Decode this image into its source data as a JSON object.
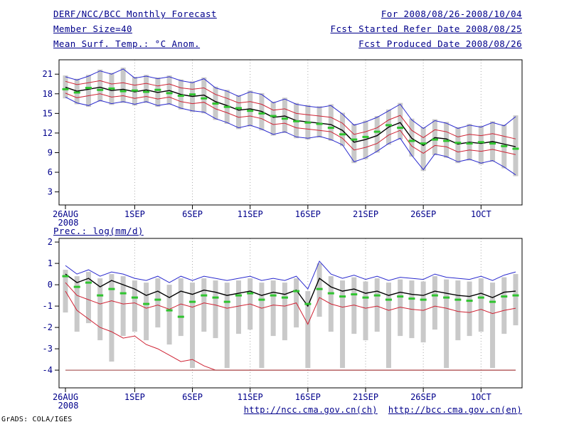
{
  "header": {
    "title": "DERF/NCC/BCC Monthly Forecast",
    "for_range": "For 2008/08/26-2008/10/04",
    "member_size": "Member Size=40",
    "refer_date": "Fcst Started Refer Date 2008/08/25",
    "produced_date": "Fcst Produced Date 2008/08/26"
  },
  "footer": {
    "url_ch": "http://ncc.cma.gov.cn(ch)",
    "url_en": "http://bcc.cma.gov.cn(en)",
    "credit": "GrADS: COLA/IGES"
  },
  "colors": {
    "ink": "#00008b",
    "frame": "#000000",
    "grid": "#aaaaaa",
    "bar": "#c9c9c9",
    "blue": "#2a2ace",
    "red": "#cf2233",
    "black": "#000000",
    "green": "#2fc42f",
    "floor_red": "#9a3b3b"
  },
  "chart_data": [
    {
      "type": "line",
      "title": "Mean Surf. Temp.: °C Anom.",
      "ylabel": "",
      "n_days": 40,
      "ylim": [
        1.0,
        23.2
      ],
      "yticks": [
        3,
        6,
        9,
        12,
        15,
        18,
        21
      ],
      "x_ticks": [
        {
          "day": 0,
          "label": "26AUG",
          "sub": "2008"
        },
        {
          "day": 6,
          "label": "1SEP"
        },
        {
          "day": 11,
          "label": "6SEP"
        },
        {
          "day": 16,
          "label": "11SEP"
        },
        {
          "day": 21,
          "label": "16SEP"
        },
        {
          "day": 26,
          "label": "21SEP"
        },
        {
          "day": 31,
          "label": "26SEP"
        },
        {
          "day": 36,
          "label": "1OCT"
        }
      ],
      "bars": {
        "name": "ensemble spread",
        "color": "#c9c9c9",
        "top": [
          20.8,
          20.3,
          20.9,
          21.7,
          21.2,
          22.0,
          20.6,
          20.9,
          20.5,
          20.8,
          20.2,
          19.9,
          20.5,
          19.1,
          18.6,
          17.8,
          18.5,
          18.1,
          16.8,
          17.4,
          16.6,
          16.3,
          16.1,
          16.4,
          15.1,
          13.4,
          13.9,
          14.6,
          15.6,
          16.6,
          14.2,
          12.9,
          14.1,
          13.7,
          12.9,
          13.4,
          13.1,
          13.8,
          13.3,
          14.7
        ],
        "bottom": [
          17.3,
          16.4,
          16.0,
          16.8,
          16.3,
          16.6,
          16.2,
          16.6,
          16.0,
          16.3,
          15.6,
          15.2,
          15.0,
          14.0,
          13.4,
          12.6,
          13.0,
          12.4,
          11.6,
          12.0,
          11.2,
          11.0,
          11.3,
          10.8,
          10.0,
          7.4,
          8.0,
          9.0,
          10.2,
          11.0,
          8.4,
          6.2,
          8.6,
          8.2,
          7.4,
          7.8,
          7.2,
          7.6,
          6.6,
          5.4
        ]
      },
      "series": [
        {
          "name": "ensemble max",
          "color": "#2a2ace",
          "width": 1,
          "values": [
            20.6,
            20.1,
            20.7,
            21.5,
            21.0,
            21.8,
            20.4,
            20.7,
            20.3,
            20.6,
            20.0,
            19.7,
            20.3,
            18.9,
            18.4,
            17.6,
            18.3,
            17.9,
            16.6,
            17.2,
            16.4,
            16.1,
            15.9,
            16.2,
            14.9,
            13.2,
            13.7,
            14.4,
            15.4,
            16.4,
            14.0,
            12.7,
            13.9,
            13.5,
            12.7,
            13.2,
            12.9,
            13.6,
            13.1,
            14.5
          ]
        },
        {
          "name": "mean plus spread",
          "color": "#cf2233",
          "width": 1,
          "values": [
            19.9,
            19.4,
            19.7,
            20.0,
            19.5,
            19.7,
            19.3,
            19.6,
            19.2,
            19.5,
            18.9,
            18.7,
            18.9,
            17.9,
            17.3,
            16.6,
            16.8,
            16.4,
            15.5,
            15.7,
            15.0,
            14.8,
            14.6,
            14.4,
            13.5,
            11.8,
            12.2,
            12.8,
            14.0,
            14.7,
            12.4,
            11.3,
            12.5,
            12.2,
            11.4,
            11.8,
            11.6,
            11.9,
            11.5,
            11.1
          ]
        },
        {
          "name": "ensemble mean",
          "color": "#000000",
          "width": 1.4,
          "values": [
            19.0,
            18.4,
            18.7,
            19.0,
            18.5,
            18.7,
            18.3,
            18.6,
            18.2,
            18.5,
            17.9,
            17.6,
            17.8,
            16.8,
            16.2,
            15.5,
            15.7,
            15.3,
            14.4,
            14.6,
            13.9,
            13.7,
            13.5,
            13.3,
            12.4,
            10.6,
            11.0,
            11.6,
            12.9,
            13.6,
            11.2,
            10.1,
            11.3,
            11.1,
            10.3,
            10.6,
            10.4,
            10.7,
            10.3,
            9.9
          ]
        },
        {
          "name": "mean minus spread",
          "color": "#cf2233",
          "width": 1,
          "values": [
            18.1,
            17.4,
            17.7,
            18.0,
            17.5,
            17.7,
            17.3,
            17.6,
            17.2,
            17.5,
            16.8,
            16.5,
            16.7,
            15.7,
            15.1,
            14.4,
            14.6,
            14.2,
            13.3,
            13.5,
            12.8,
            12.6,
            12.4,
            12.2,
            11.2,
            9.4,
            9.8,
            10.4,
            11.7,
            12.4,
            10.0,
            8.9,
            10.1,
            9.9,
            9.1,
            9.4,
            9.2,
            9.5,
            9.1,
            8.7
          ]
        },
        {
          "name": "ensemble min",
          "color": "#2a2ace",
          "width": 1,
          "values": [
            17.5,
            16.6,
            16.2,
            17.0,
            16.5,
            16.8,
            16.4,
            16.8,
            16.2,
            16.5,
            15.8,
            15.4,
            15.2,
            14.2,
            13.6,
            12.8,
            13.2,
            12.6,
            11.8,
            12.2,
            11.4,
            11.2,
            11.5,
            11.0,
            10.2,
            7.6,
            8.2,
            9.2,
            10.4,
            11.2,
            8.6,
            6.4,
            8.8,
            8.4,
            7.6,
            8.0,
            7.4,
            7.8,
            6.8,
            5.6
          ]
        }
      ],
      "green_dashes": {
        "name": "median marks",
        "color": "#2fc42f",
        "values": [
          18.7,
          18.2,
          18.9,
          18.6,
          18.8,
          18.4,
          18.5,
          18.3,
          18.6,
          18.1,
          17.7,
          17.9,
          17.3,
          16.5,
          16.0,
          15.8,
          15.4,
          15.0,
          14.6,
          14.2,
          13.8,
          13.6,
          13.4,
          12.8,
          11.8,
          11.0,
          11.4,
          12.2,
          13.2,
          12.8,
          10.8,
          10.4,
          11.0,
          10.8,
          10.5,
          10.4,
          10.6,
          10.4,
          10.0,
          9.6
        ]
      }
    },
    {
      "type": "line",
      "title": "Prec.: log(mm/d)",
      "ylabel": "",
      "n_days": 40,
      "ylim": [
        -4.83,
        2.17
      ],
      "yticks": [
        2,
        1,
        0,
        -1,
        -2,
        -3,
        -4
      ],
      "x_ticks": [
        {
          "day": 0,
          "label": "26AUG",
          "sub": "2008"
        },
        {
          "day": 6,
          "label": "1SEP"
        },
        {
          "day": 11,
          "label": "6SEP"
        },
        {
          "day": 16,
          "label": "11SEP"
        },
        {
          "day": 21,
          "label": "16SEP"
        },
        {
          "day": 26,
          "label": "21SEP"
        },
        {
          "day": 31,
          "label": "26SEP"
        },
        {
          "day": 36,
          "label": "1OCT"
        }
      ],
      "bars": {
        "name": "ensemble spread",
        "color": "#c9c9c9",
        "top": [
          0.7,
          0.4,
          0.6,
          0.3,
          0.5,
          0.4,
          0.2,
          0.1,
          0.3,
          0.0,
          0.3,
          0.1,
          0.3,
          0.2,
          0.1,
          0.2,
          0.3,
          0.1,
          0.2,
          0.1,
          0.3,
          -0.3,
          1.0,
          0.4,
          0.2,
          0.35,
          0.15,
          0.3,
          0.1,
          0.25,
          0.2,
          0.15,
          0.4,
          0.25,
          0.2,
          0.15,
          0.3,
          0.1,
          0.35,
          0.5
        ],
        "bottom": [
          -1.3,
          -2.2,
          -1.8,
          -2.6,
          -3.6,
          -2.4,
          -2.2,
          -2.6,
          -2.0,
          -2.8,
          -2.4,
          -3.9,
          -2.2,
          -2.5,
          -3.9,
          -2.3,
          -2.1,
          -3.9,
          -2.4,
          -2.6,
          -2.0,
          -3.9,
          -1.5,
          -2.2,
          -3.9,
          -2.3,
          -2.6,
          -2.2,
          -3.9,
          -2.4,
          -2.5,
          -2.7,
          -2.1,
          -3.9,
          -2.6,
          -2.4,
          -2.2,
          -3.9,
          -2.3,
          -1.9
        ]
      },
      "series": [
        {
          "name": "ensemble max",
          "color": "#2a2ace",
          "width": 1,
          "values": [
            0.9,
            0.5,
            0.7,
            0.4,
            0.6,
            0.5,
            0.3,
            0.2,
            0.4,
            0.1,
            0.4,
            0.2,
            0.4,
            0.3,
            0.2,
            0.3,
            0.4,
            0.2,
            0.3,
            0.2,
            0.4,
            -0.2,
            1.1,
            0.5,
            0.3,
            0.45,
            0.25,
            0.4,
            0.2,
            0.35,
            0.3,
            0.25,
            0.5,
            0.35,
            0.3,
            0.25,
            0.4,
            0.2,
            0.45,
            0.6
          ]
        },
        {
          "name": "ensemble mean",
          "color": "#000000",
          "width": 1.4,
          "values": [
            0.5,
            0.1,
            0.3,
            -0.1,
            0.2,
            0.0,
            -0.2,
            -0.5,
            -0.3,
            -0.6,
            -0.3,
            -0.45,
            -0.25,
            -0.35,
            -0.5,
            -0.4,
            -0.3,
            -0.5,
            -0.35,
            -0.45,
            -0.25,
            -1.0,
            0.3,
            -0.1,
            -0.3,
            -0.2,
            -0.4,
            -0.3,
            -0.5,
            -0.35,
            -0.45,
            -0.5,
            -0.3,
            -0.4,
            -0.5,
            -0.55,
            -0.4,
            -0.6,
            -0.35,
            -0.3
          ]
        },
        {
          "name": "mean minus spread",
          "color": "#cf2233",
          "width": 1,
          "values": [
            0.1,
            -0.5,
            -0.7,
            -0.9,
            -0.75,
            -0.9,
            -0.85,
            -1.1,
            -0.95,
            -1.15,
            -0.9,
            -1.05,
            -0.85,
            -0.95,
            -1.1,
            -1.0,
            -0.9,
            -1.1,
            -0.95,
            -1.0,
            -0.85,
            -1.85,
            -0.6,
            -0.9,
            -1.05,
            -0.95,
            -1.1,
            -1.0,
            -1.2,
            -1.05,
            -1.15,
            -1.2,
            -1.0,
            -1.1,
            -1.25,
            -1.3,
            -1.15,
            -1.35,
            -1.2,
            -1.1
          ]
        },
        {
          "name": "ensemble min descending",
          "color": "#cf2233",
          "width": 1,
          "values": [
            -0.3,
            -1.2,
            -1.6,
            -2.0,
            -2.2,
            -2.5,
            -2.4,
            -2.8,
            -3.0,
            -3.3,
            -3.6,
            -3.5,
            -3.8,
            -4.0,
            -4.0,
            -4.0,
            -4.0,
            -4.0,
            -4.0,
            -4.0,
            -4.0,
            -4.0,
            -4.0,
            -4.0,
            -4.0,
            -4.0,
            -4.0,
            -4.0,
            -4.0,
            -4.0,
            -4.0,
            -4.0,
            -4.0,
            -4.0,
            -4.0,
            -4.0,
            -4.0,
            -4.0,
            -4.0,
            -4.0
          ]
        },
        {
          "name": "dry floor",
          "color": "#9a3b3b",
          "width": 1,
          "values": [
            -4.0,
            -4.0,
            -4.0,
            -4.0,
            -4.0,
            -4.0,
            -4.0,
            -4.0,
            -4.0,
            -4.0,
            -4.0,
            -4.0,
            -4.0,
            -4.0,
            -4.0,
            -4.0,
            -4.0,
            -4.0,
            -4.0,
            -4.0,
            -4.0,
            -4.0,
            -4.0,
            -4.0,
            -4.0,
            -4.0,
            -4.0,
            -4.0,
            -4.0,
            -4.0,
            -4.0,
            -4.0,
            -4.0,
            -4.0,
            -4.0,
            -4.0,
            -4.0,
            -4.0,
            -4.0,
            -4.0
          ]
        }
      ],
      "green_dashes": {
        "name": "median marks",
        "color": "#2fc42f",
        "values": [
          0.4,
          -0.1,
          0.1,
          -0.5,
          -0.2,
          -0.4,
          -0.6,
          -0.9,
          -0.7,
          -1.2,
          -1.5,
          -0.8,
          -0.5,
          -0.6,
          -0.8,
          -0.5,
          -0.4,
          -0.7,
          -0.5,
          -0.6,
          -0.3,
          -0.9,
          -0.2,
          -0.4,
          -0.55,
          -0.45,
          -0.6,
          -0.5,
          -0.7,
          -0.55,
          -0.65,
          -0.7,
          -0.5,
          -0.6,
          -0.7,
          -0.75,
          -0.6,
          -0.8,
          -0.55,
          -0.5
        ]
      }
    }
  ]
}
